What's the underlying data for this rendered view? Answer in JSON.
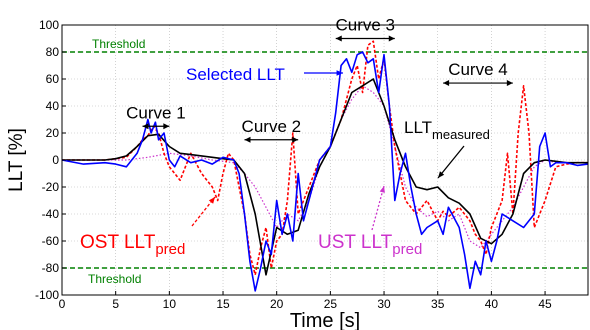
{
  "chart_data": {
    "type": "line",
    "title": "",
    "xlabel": "Time [s]",
    "ylabel": "LLT [%]",
    "xlim": [
      0,
      49
    ],
    "ylim": [
      -100,
      100
    ],
    "xticks": [
      0,
      5,
      10,
      15,
      20,
      25,
      30,
      35,
      40,
      45
    ],
    "yticks": [
      -100,
      -80,
      -60,
      -40,
      -20,
      0,
      20,
      40,
      60,
      80,
      100
    ],
    "grid": true,
    "thresholds": [
      {
        "label": "Threshold",
        "y": 80,
        "color": "#008000"
      },
      {
        "label": "Threshold",
        "y": -80,
        "color": "#008000"
      }
    ],
    "series": [
      {
        "name": "Selected LLT",
        "color": "#0000ff",
        "x": [
          0,
          2,
          4,
          5,
          6,
          7,
          7.5,
          8,
          8.3,
          8.7,
          9,
          9.5,
          10,
          10.5,
          11,
          12,
          13,
          14,
          15,
          16,
          16.5,
          17,
          17.5,
          18,
          18.5,
          19,
          19.5,
          20,
          20.5,
          21,
          21.5,
          22,
          22.5,
          23,
          24,
          25,
          25.5,
          26,
          26.5,
          27,
          27.5,
          28,
          28.5,
          29,
          29.5,
          30,
          30.5,
          31,
          31.5,
          32,
          32.5,
          33,
          33.5,
          34,
          35,
          35.5,
          36,
          37,
          37.5,
          38,
          38.5,
          39,
          39.5,
          40,
          40.5,
          41,
          42,
          43,
          44,
          44.5,
          45,
          45.5,
          46,
          47,
          48,
          49
        ],
        "y": [
          0,
          -3,
          -2,
          -3,
          -5,
          5,
          15,
          30,
          20,
          28,
          15,
          20,
          0,
          -5,
          3,
          -2,
          0,
          -3,
          2,
          0,
          -10,
          -40,
          -75,
          -97,
          -80,
          -60,
          -70,
          -30,
          -55,
          -40,
          -60,
          -10,
          -45,
          -30,
          0,
          10,
          35,
          70,
          75,
          65,
          78,
          80,
          72,
          75,
          50,
          78,
          40,
          -30,
          -10,
          5,
          -20,
          -40,
          -55,
          -50,
          -45,
          -55,
          -35,
          -50,
          -70,
          -95,
          -75,
          -85,
          -60,
          -75,
          -60,
          -40,
          -45,
          -50,
          -40,
          10,
          20,
          -5,
          -2,
          -2,
          -4,
          -3
        ]
      },
      {
        "name": "LLT",
        "color": "#000000",
        "x": [
          0,
          2,
          4,
          5,
          6,
          7,
          8,
          9,
          10,
          11,
          12,
          13,
          14,
          15,
          16,
          17,
          18,
          19,
          20,
          21,
          22,
          23,
          24,
          25,
          26,
          27,
          28,
          29,
          30,
          31,
          32,
          33,
          34,
          35,
          36,
          37,
          38,
          39,
          40,
          41,
          42,
          43,
          44,
          45,
          46,
          47,
          48,
          49
        ],
        "y": [
          0,
          0,
          0,
          1,
          3,
          10,
          18,
          19,
          10,
          5,
          4,
          3,
          2,
          1,
          0,
          -10,
          -40,
          -85,
          -50,
          -55,
          -52,
          -25,
          -5,
          10,
          30,
          50,
          55,
          60,
          40,
          15,
          -5,
          -20,
          -22,
          -20,
          -28,
          -32,
          -40,
          -58,
          -62,
          -55,
          -40,
          -10,
          -2,
          0,
          -1,
          -2,
          -2,
          -2
        ]
      },
      {
        "name": "OST LLT",
        "color": "#ff0000",
        "x": [
          0,
          2,
          4,
          6,
          7,
          7.5,
          8,
          8.5,
          9,
          9.5,
          10,
          10.5,
          11,
          11.5,
          12,
          13,
          13.5,
          14,
          14.5,
          15,
          15.5,
          16,
          16.5,
          17,
          17.5,
          18,
          18.5,
          19,
          19.5,
          20,
          20.5,
          21,
          21.5,
          22,
          23,
          24,
          25,
          26,
          26.5,
          27,
          27.5,
          28,
          28.5,
          29,
          29.5,
          30,
          30.5,
          31,
          31.5,
          32,
          32.5,
          33,
          34,
          35,
          35.5,
          36,
          37,
          38,
          38.5,
          39,
          39.5,
          40,
          40.5,
          41,
          41.5,
          42,
          42.5,
          43,
          43.5,
          44,
          45,
          46,
          47,
          48,
          49
        ],
        "y": [
          0,
          0,
          0,
          2,
          10,
          15,
          18,
          25,
          20,
          5,
          -5,
          -10,
          -15,
          -5,
          5,
          -10,
          -15,
          -20,
          -30,
          -10,
          5,
          0,
          -20,
          -40,
          -70,
          -85,
          -65,
          -50,
          -80,
          -60,
          -55,
          -30,
          20,
          -40,
          -20,
          0,
          10,
          30,
          45,
          60,
          70,
          50,
          85,
          88,
          60,
          75,
          40,
          10,
          -10,
          -30,
          -35,
          -40,
          -30,
          -45,
          -38,
          -42,
          -35,
          -45,
          -55,
          -60,
          -70,
          -50,
          -40,
          -30,
          5,
          -40,
          20,
          55,
          20,
          -50,
          -30,
          -5,
          -3,
          -2,
          -2
        ]
      },
      {
        "name": "UST LLT",
        "color": "#cc33cc",
        "x": [
          0,
          2,
          4,
          6,
          8,
          10,
          12,
          14,
          16,
          17,
          18,
          19,
          20,
          21,
          22,
          23,
          24,
          25,
          26,
          27,
          28,
          29,
          30,
          31,
          32,
          33,
          34,
          35,
          36,
          37,
          38,
          39,
          40,
          41,
          42,
          43,
          44,
          45,
          46,
          47,
          48,
          49
        ],
        "y": [
          0,
          0,
          0,
          0,
          2,
          5,
          3,
          0,
          -2,
          -10,
          -20,
          -35,
          -50,
          -40,
          -45,
          -30,
          -5,
          10,
          30,
          45,
          55,
          50,
          40,
          10,
          -20,
          -35,
          -42,
          -38,
          -45,
          -40,
          -60,
          -65,
          -55,
          -45,
          -35,
          -20,
          -5,
          0,
          -2,
          -2,
          -2,
          -2
        ]
      }
    ],
    "annotations": [
      {
        "text": "Curve 1",
        "span": [
          7.5,
          10
        ],
        "y": 25
      },
      {
        "text": "Curve 2",
        "span": [
          17,
          22
        ],
        "y": 15
      },
      {
        "text": "Curve 3",
        "span": [
          25.5,
          31
        ],
        "y": 90
      },
      {
        "text": "Curve 4",
        "span": [
          35.5,
          42
        ],
        "y": 57
      }
    ],
    "labels": {
      "selected": "Selected LLT",
      "measured_main": "LLT",
      "measured_sub": "measured",
      "ost_main": "OST LLT",
      "ost_sub": "pred",
      "ust_main": "UST LLT",
      "ust_sub": "pred",
      "threshold_top": "Threshold",
      "threshold_bottom": "Threshold"
    }
  }
}
